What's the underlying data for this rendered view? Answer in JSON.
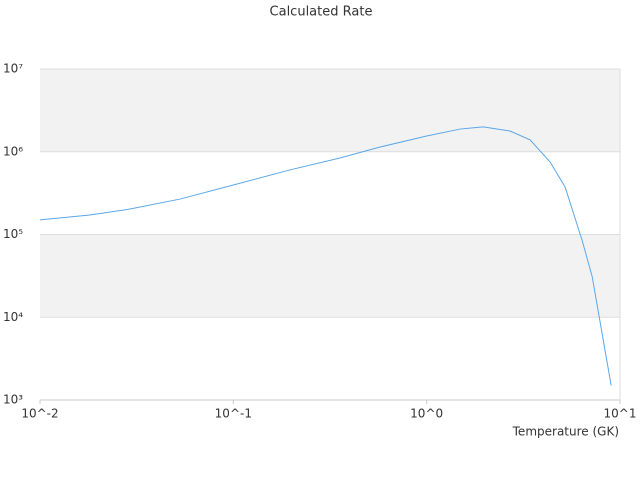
{
  "chart_data": {
    "type": "line",
    "title": "Calculated Rate",
    "x_label": "Temperature (GK)",
    "x_log": true,
    "y_log": true,
    "grid": true,
    "bands": true,
    "xlim": [
      0.01,
      10
    ],
    "ylim": [
      1000,
      10000000
    ],
    "xticks": [
      {
        "value": 0.01,
        "label": "10^-2"
      },
      {
        "value": 0.1,
        "label": "10^-1"
      },
      {
        "value": 1,
        "label": "10^0"
      },
      {
        "value": 10,
        "label": "10^1"
      }
    ],
    "yticks": [
      {
        "value": 1000,
        "label": "10³"
      },
      {
        "value": 10000,
        "label": "10⁴"
      },
      {
        "value": 100000,
        "label": "10⁵"
      },
      {
        "value": 1000000,
        "label": "10⁶"
      },
      {
        "value": 10000000,
        "label": "10⁷"
      }
    ],
    "x": [
      0.01,
      0.0181,
      0.0292,
      0.053,
      0.1,
      0.196,
      0.356,
      0.574,
      1.0,
      1.49,
      1.96,
      2.7,
      3.43,
      4.35,
      5.2,
      6.37,
      7.18,
      9.0
    ],
    "series": [
      {
        "color": "#5aa7e8",
        "values": [
          150000,
          172000,
          203000,
          268000,
          396000,
          603000,
          840000,
          1140000,
          1550000,
          1880000,
          2000000,
          1780000,
          1390000,
          752000,
          375000,
          85000,
          31000,
          1500
        ]
      }
    ]
  }
}
